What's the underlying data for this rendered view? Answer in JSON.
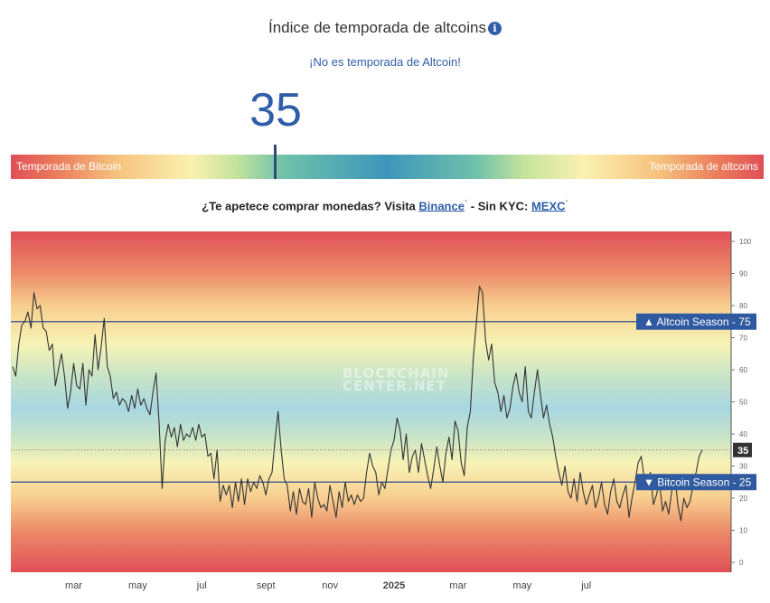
{
  "header": {
    "title": "Índice de temporada de altcoins",
    "info_icon": "info-icon",
    "status": "¡No es temporada de Altcoin!",
    "value": "35"
  },
  "gauge": {
    "left_label": "Temporada de Bitcoin",
    "right_label": "Temporada de altcoins",
    "value": 35,
    "min": 0,
    "max": 100
  },
  "promo": {
    "text_before": "¿Te apetece comprar monedas? Visita ",
    "link1": "Binance",
    "link1_mark": "°",
    "middle": " - Sin KYC: ",
    "link2": "MEXC",
    "link2_mark": "°"
  },
  "watermark": {
    "line1": "BLOCKCHAIN",
    "line2": "CENTER.NET"
  },
  "chart_data": {
    "type": "line",
    "ylim": [
      0,
      100
    ],
    "y_ticks": [
      "0",
      "10",
      "20",
      "30",
      "40",
      "50",
      "60",
      "70",
      "80",
      "90",
      "100"
    ],
    "x_ticks": [
      {
        "label": "mar",
        "bold": false
      },
      {
        "label": "may",
        "bold": false
      },
      {
        "label": "jul",
        "bold": false
      },
      {
        "label": "sept",
        "bold": false
      },
      {
        "label": "nov",
        "bold": false
      },
      {
        "label": "2025",
        "bold": true
      },
      {
        "label": "mar",
        "bold": false
      },
      {
        "label": "may",
        "bold": false
      },
      {
        "label": "jul",
        "bold": false
      }
    ],
    "x_tick_index": [
      20,
      41,
      62,
      83,
      104,
      125,
      146,
      167,
      188
    ],
    "thresholds": [
      {
        "label": "▲ Altcoin Season - 75",
        "value": 75
      },
      {
        "label": "▼ Bitcoin Season - 25",
        "value": 25
      }
    ],
    "current": {
      "label": "35",
      "value": 35
    },
    "series": [
      {
        "values": [
          61,
          58,
          68,
          74,
          75,
          78,
          73,
          84,
          79,
          80,
          73,
          72,
          66,
          68,
          55,
          60,
          65,
          58,
          48,
          53,
          62,
          55,
          54,
          62,
          49,
          60,
          58,
          71,
          60,
          67,
          76,
          61,
          58,
          51,
          53,
          49,
          51,
          50,
          47,
          52,
          48,
          54,
          49,
          51,
          48,
          46,
          53,
          59,
          43,
          23,
          38,
          43,
          39,
          42,
          36,
          43,
          38,
          40,
          39,
          42,
          38,
          43,
          39,
          40,
          33,
          34,
          26,
          35,
          19,
          24,
          21,
          24,
          17,
          25,
          19,
          26,
          18,
          26,
          22,
          25,
          23,
          27,
          25,
          21,
          26,
          28,
          38,
          47,
          35,
          26,
          24,
          16,
          22,
          15,
          23,
          19,
          18,
          23,
          14,
          25,
          20,
          17,
          18,
          16,
          24,
          19,
          14,
          22,
          17,
          25,
          19,
          21,
          18,
          21,
          19,
          20,
          28,
          34,
          30,
          28,
          21,
          25,
          23,
          29,
          35,
          38,
          45,
          41,
          32,
          40,
          28,
          33,
          35,
          28,
          37,
          32,
          27,
          23,
          29,
          36,
          30,
          25,
          34,
          39,
          32,
          44,
          41,
          31,
          27,
          42,
          47,
          64,
          75,
          86,
          84,
          69,
          63,
          68,
          56,
          53,
          47,
          52,
          45,
          48,
          55,
          59,
          53,
          50,
          61,
          47,
          45,
          53,
          60,
          52,
          45,
          49,
          43,
          39,
          33,
          28,
          24,
          30,
          22,
          20,
          26,
          19,
          28,
          22,
          18,
          21,
          24,
          17,
          20,
          25,
          18,
          15,
          22,
          26,
          19,
          17,
          21,
          24,
          14,
          20,
          25,
          31,
          33,
          26,
          23,
          28,
          18,
          21,
          25,
          16,
          19,
          15,
          22,
          27,
          18,
          13,
          20,
          17,
          19,
          24,
          28,
          33,
          35
        ]
      }
    ]
  }
}
